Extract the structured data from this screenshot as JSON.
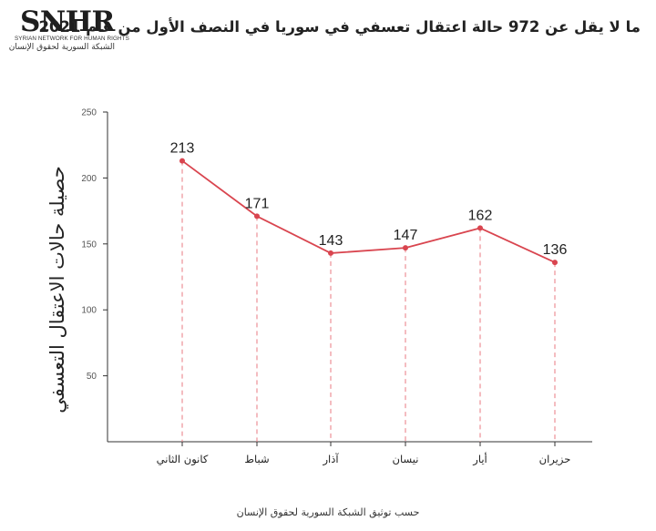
{
  "logo": {
    "mark": "SNHR",
    "english": "SYRIAN NETWORK FOR HUMAN RIGHTS",
    "arabic": "الشبكة السورية لحقوق الإنسان"
  },
  "footer": "حسب توثيق الشبكة السورية لحقوق الإنسان",
  "colors": {
    "line": "#d9454f",
    "axis": "#333333",
    "drop": "#e87a80"
  },
  "chart_data": {
    "type": "line",
    "title": "ما لا يقل عن 972 حالة اعتقال تعسفي في سوريا في النصف الأول من عام 2021",
    "ylabel": "حصيلة حالات الاعتقال التعسفي",
    "xlabel": "",
    "categories": [
      "كانون الثاني",
      "شباط",
      "آذار",
      "نيسان",
      "أيار",
      "حزيران"
    ],
    "values": [
      213,
      171,
      143,
      147,
      162,
      136
    ],
    "ylim": [
      0,
      250
    ],
    "yticks": [
      50,
      100,
      150,
      200,
      250
    ],
    "grid": false,
    "legend": "none",
    "data_labels": true
  }
}
